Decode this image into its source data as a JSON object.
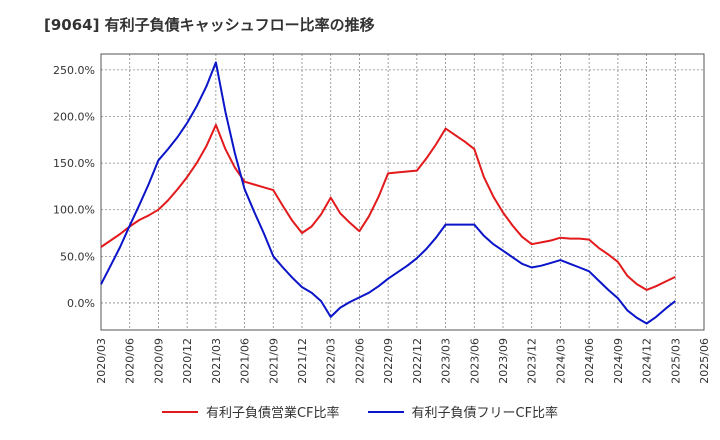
{
  "title": "[9064]  有利子負債キャッシュフロー比率の推移",
  "chart_data": {
    "type": "line",
    "x": [
      "2020/03",
      "2020/04",
      "2020/05",
      "2020/06",
      "2020/07",
      "2020/08",
      "2020/09",
      "2020/10",
      "2020/11",
      "2020/12",
      "2021/01",
      "2021/02",
      "2021/03",
      "2021/04",
      "2021/05",
      "2021/06",
      "2021/07",
      "2021/08",
      "2021/09",
      "2021/10",
      "2021/11",
      "2021/12",
      "2022/01",
      "2022/02",
      "2022/03",
      "2022/04",
      "2022/05",
      "2022/06",
      "2022/07",
      "2022/08",
      "2022/09",
      "2022/10",
      "2022/11",
      "2022/12",
      "2023/01",
      "2023/02",
      "2023/03",
      "2023/04",
      "2023/05",
      "2023/06",
      "2023/07",
      "2023/08",
      "2023/09",
      "2023/10",
      "2023/11",
      "2023/12",
      "2024/01",
      "2024/02",
      "2024/03",
      "2024/04",
      "2024/05",
      "2024/06",
      "2024/07",
      "2024/08",
      "2024/09",
      "2024/10",
      "2024/11",
      "2024/12",
      "2025/01",
      "2025/02",
      "2025/03"
    ],
    "x_ticks": [
      "2020/03",
      "2020/06",
      "2020/09",
      "2020/12",
      "2021/03",
      "2021/06",
      "2021/09",
      "2021/12",
      "2022/03",
      "2022/06",
      "2022/09",
      "2022/12",
      "2023/03",
      "2023/06",
      "2023/09",
      "2023/12",
      "2024/03",
      "2024/06",
      "2024/09",
      "2024/12",
      "2025/03",
      "2025/06"
    ],
    "y_ticks": [
      "0.0%",
      "50.0%",
      "100.0%",
      "150.0%",
      "200.0%",
      "250.0%"
    ],
    "y_tick_values": [
      0,
      50,
      100,
      150,
      200,
      250
    ],
    "ylim": [
      -29,
      267
    ],
    "xlim": [
      0,
      63
    ],
    "grid": true,
    "legend_position": "bottom",
    "series": [
      {
        "name": "有利子負債営業CF比率",
        "color": "#e31a1c",
        "values": [
          60,
          67,
          74,
          82,
          89,
          94,
          100,
          110,
          122,
          135,
          150,
          168,
          191,
          165,
          145,
          130,
          127,
          124,
          121,
          104,
          88,
          75,
          82,
          95,
          113,
          96,
          86,
          77,
          93,
          114,
          139,
          140,
          141,
          142,
          155,
          170,
          187,
          180,
          173,
          165,
          135,
          114,
          97,
          83,
          71,
          63,
          65,
          67,
          70,
          69,
          69,
          68,
          59,
          52,
          44,
          29,
          20,
          14,
          18,
          23,
          28
        ]
      },
      {
        "name": "有利子負債フリーCF比率",
        "color": "#0a14c8",
        "values": [
          20,
          40,
          60,
          83,
          105,
          128,
          153,
          165,
          178,
          193,
          211,
          232,
          258,
          205,
          160,
          122,
          98,
          75,
          50,
          38,
          27,
          17,
          11,
          2,
          -15,
          -5,
          1,
          6,
          11,
          18,
          26,
          33,
          40,
          48,
          58,
          70,
          84,
          84,
          84,
          84,
          72,
          63,
          56,
          49,
          42,
          38,
          40,
          43,
          46,
          42,
          38,
          34,
          24,
          14,
          5,
          -8,
          -16,
          -22,
          -15,
          -6,
          2
        ]
      }
    ]
  }
}
